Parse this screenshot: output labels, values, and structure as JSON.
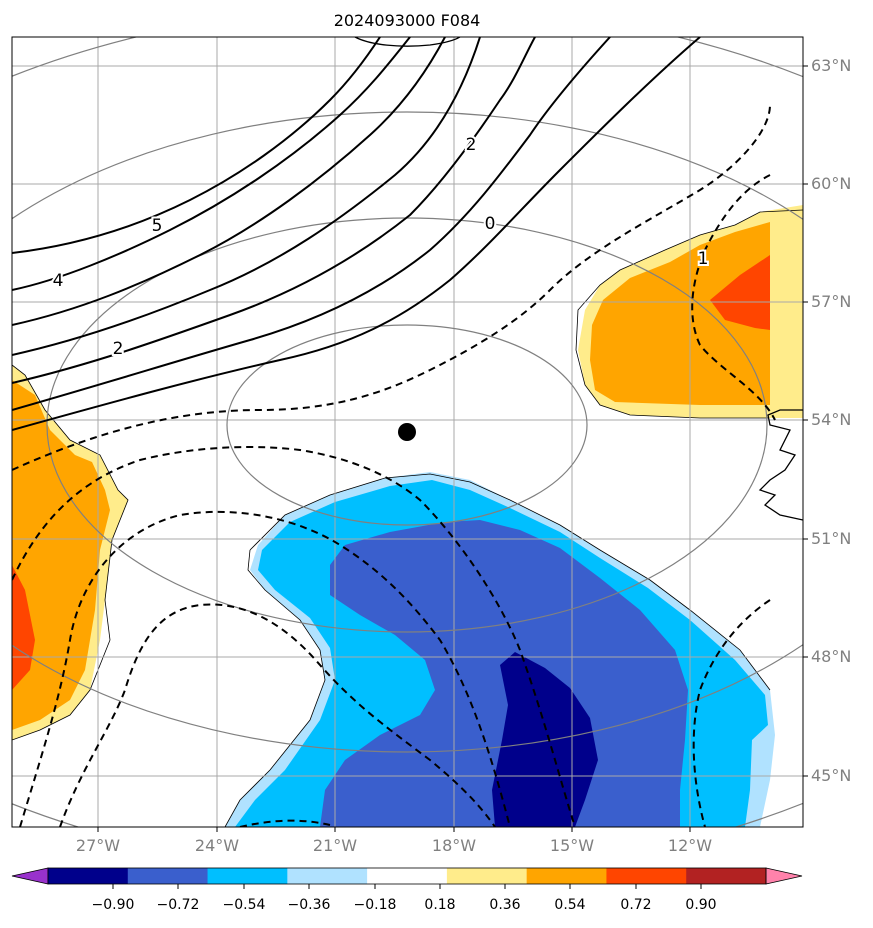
{
  "title": "2024093000 F084",
  "axes": {
    "lat_labels": [
      "63°N",
      "60°N",
      "57°N",
      "54°N",
      "51°N",
      "48°N",
      "45°N"
    ],
    "lon_labels": [
      "27°W",
      "24°W",
      "21°W",
      "18°W",
      "15°W",
      "12°W"
    ],
    "tick_color": "#808080"
  },
  "contour_labels": [
    "5",
    "4",
    "2",
    "2",
    "0",
    "1"
  ],
  "colorbar": {
    "ticks": [
      "−0.90",
      "−0.72",
      "−0.54",
      "−0.36",
      "−0.18",
      "0.18",
      "0.36",
      "0.54",
      "0.72",
      "0.90"
    ],
    "colors": [
      "#9932cc",
      "#00008b",
      "#3a5fcd",
      "#00bfff",
      "#b0e2ff",
      "#ffffff",
      "#ffec8b",
      "#ffa500",
      "#ff4500",
      "#b22222",
      "#ff82ab"
    ]
  },
  "marker": {
    "label": "center-point"
  }
}
